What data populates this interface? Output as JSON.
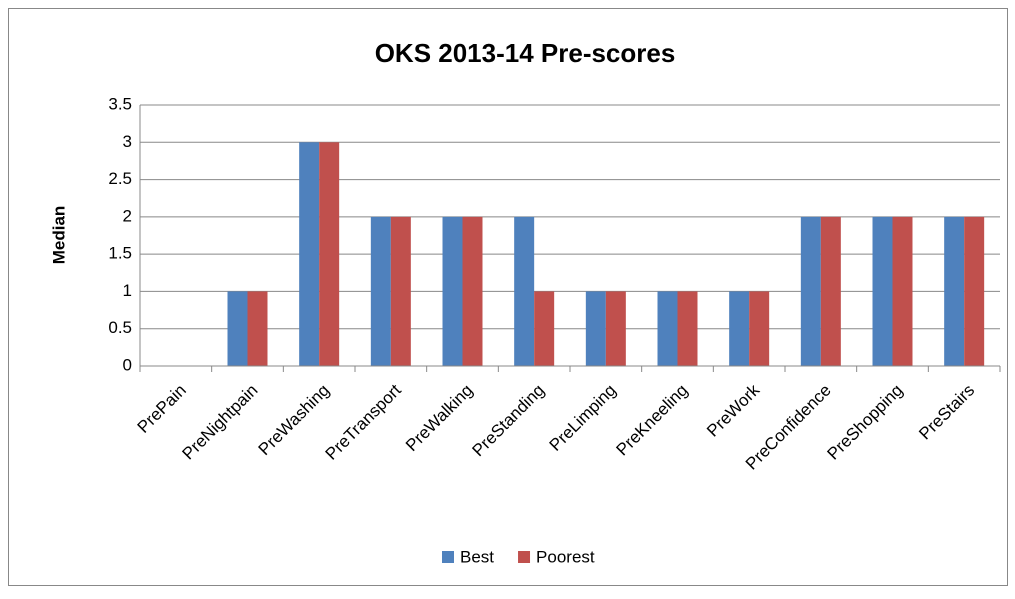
{
  "chart_data": {
    "type": "bar",
    "title": "OKS 2013-14  Pre-scores",
    "y_label": "Median",
    "categories": [
      "PrePain",
      "PreNightpain",
      "PreWashing",
      "PreTransport",
      "PreWalking",
      "PreStanding",
      "PreLimping",
      "PreKneeling",
      "PreWork",
      "PreConfidence",
      "PreShopping",
      "PreStairs"
    ],
    "series": [
      {
        "name": "Best",
        "color": "#4f81bd",
        "values": [
          0,
          1,
          3,
          2,
          2,
          2,
          1,
          1,
          1,
          2,
          2,
          2
        ]
      },
      {
        "name": "Poorest",
        "color": "#c0504d",
        "values": [
          0,
          1,
          3,
          2,
          2,
          1,
          1,
          1,
          1,
          2,
          2,
          2
        ]
      }
    ],
    "ylim": [
      0,
      3.5
    ],
    "yticks": [
      0,
      0.5,
      1,
      1.5,
      2,
      2.5,
      3,
      3.5
    ],
    "grid": true,
    "legend": "bottom"
  }
}
